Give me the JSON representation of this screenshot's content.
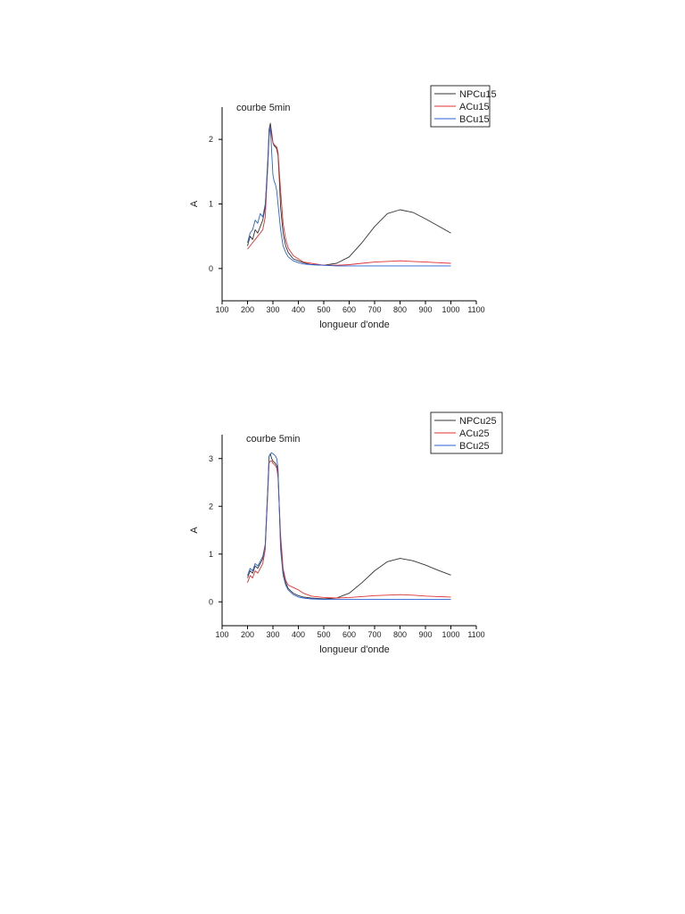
{
  "chart_data": [
    {
      "type": "line",
      "title": "courbe 5min",
      "xlabel": "longueur d'onde",
      "ylabel": "A",
      "xlim": [
        100,
        1100
      ],
      "ylim": [
        -0.5,
        2.5
      ],
      "xticks": [
        100,
        200,
        300,
        400,
        500,
        600,
        700,
        800,
        900,
        1000,
        1100
      ],
      "yticks": [
        0,
        1,
        2
      ],
      "grid": false,
      "legend": "top-right",
      "series": [
        {
          "name": "NPCu15",
          "color": "#333333",
          "x": [
            200,
            210,
            220,
            230,
            240,
            250,
            260,
            270,
            280,
            285,
            290,
            295,
            300,
            305,
            310,
            315,
            320,
            325,
            330,
            340,
            350,
            360,
            380,
            400,
            420,
            450,
            500,
            550,
            600,
            650,
            700,
            750,
            800,
            850,
            900,
            950,
            1000
          ],
          "y": [
            0.35,
            0.5,
            0.45,
            0.6,
            0.55,
            0.65,
            0.75,
            0.95,
            1.7,
            2.15,
            2.25,
            2.1,
            1.95,
            1.9,
            1.88,
            1.85,
            1.75,
            1.4,
            0.95,
            0.55,
            0.35,
            0.25,
            0.15,
            0.12,
            0.09,
            0.06,
            0.05,
            0.08,
            0.18,
            0.4,
            0.65,
            0.85,
            0.91,
            0.87,
            0.77,
            0.66,
            0.55
          ]
        },
        {
          "name": "ACu15",
          "color": "#e03030",
          "x": [
            200,
            210,
            220,
            230,
            240,
            250,
            260,
            270,
            280,
            285,
            290,
            295,
            300,
            305,
            310,
            315,
            320,
            330,
            340,
            350,
            360,
            380,
            400,
            420,
            450,
            500,
            550,
            600,
            650,
            700,
            750,
            800,
            850,
            900,
            950,
            1000
          ],
          "y": [
            0.3,
            0.35,
            0.4,
            0.45,
            0.5,
            0.55,
            0.6,
            0.8,
            1.6,
            2.1,
            2.2,
            2.05,
            1.95,
            1.92,
            1.9,
            1.88,
            1.8,
            1.2,
            0.7,
            0.45,
            0.32,
            0.2,
            0.15,
            0.1,
            0.08,
            0.05,
            0.05,
            0.06,
            0.08,
            0.1,
            0.11,
            0.12,
            0.11,
            0.1,
            0.09,
            0.08
          ]
        },
        {
          "name": "BCu15",
          "color": "#2a62d6",
          "x": [
            200,
            210,
            220,
            230,
            240,
            250,
            260,
            270,
            280,
            285,
            290,
            295,
            300,
            305,
            310,
            315,
            320,
            330,
            340,
            350,
            360,
            380,
            400,
            420,
            450,
            500,
            550,
            600,
            650,
            700,
            750,
            800,
            850,
            900,
            950,
            1000
          ],
          "y": [
            0.4,
            0.55,
            0.6,
            0.75,
            0.7,
            0.85,
            0.8,
            1.0,
            1.6,
            2.05,
            2.2,
            1.8,
            1.45,
            1.35,
            1.3,
            1.2,
            1.0,
            0.6,
            0.35,
            0.25,
            0.18,
            0.12,
            0.09,
            0.07,
            0.06,
            0.05,
            0.04,
            0.04,
            0.04,
            0.04,
            0.04,
            0.04,
            0.04,
            0.04,
            0.04,
            0.04
          ]
        }
      ]
    },
    {
      "type": "line",
      "title": "courbe 5min",
      "xlabel": "longueur d'onde",
      "ylabel": "A",
      "xlim": [
        100,
        1100
      ],
      "ylim": [
        -0.5,
        3.5
      ],
      "xticks": [
        100,
        200,
        300,
        400,
        500,
        600,
        700,
        800,
        900,
        1000,
        1100
      ],
      "yticks": [
        0,
        1,
        2,
        3
      ],
      "grid": false,
      "legend": "top-right",
      "series": [
        {
          "name": "NPCu25",
          "color": "#333333",
          "x": [
            200,
            210,
            220,
            230,
            240,
            250,
            260,
            270,
            280,
            285,
            290,
            295,
            300,
            305,
            310,
            315,
            320,
            325,
            330,
            340,
            350,
            360,
            380,
            400,
            420,
            450,
            500,
            550,
            600,
            650,
            700,
            750,
            800,
            850,
            900,
            950,
            1000
          ],
          "y": [
            0.5,
            0.65,
            0.6,
            0.75,
            0.7,
            0.8,
            0.9,
            1.2,
            2.4,
            3.05,
            3.1,
            3.0,
            2.95,
            2.92,
            2.9,
            2.85,
            2.7,
            2.0,
            1.2,
            0.65,
            0.4,
            0.28,
            0.18,
            0.13,
            0.1,
            0.08,
            0.06,
            0.08,
            0.18,
            0.4,
            0.65,
            0.84,
            0.91,
            0.86,
            0.77,
            0.66,
            0.56
          ]
        },
        {
          "name": "ACu25",
          "color": "#e03030",
          "x": [
            200,
            210,
            220,
            230,
            240,
            250,
            260,
            270,
            280,
            285,
            290,
            295,
            300,
            305,
            310,
            315,
            320,
            330,
            340,
            350,
            360,
            380,
            400,
            420,
            450,
            500,
            550,
            600,
            650,
            700,
            750,
            800,
            850,
            900,
            950,
            1000
          ],
          "y": [
            0.4,
            0.55,
            0.5,
            0.65,
            0.6,
            0.7,
            0.8,
            1.1,
            2.3,
            2.9,
            2.95,
            2.95,
            2.9,
            2.88,
            2.85,
            2.8,
            2.6,
            1.4,
            0.7,
            0.45,
            0.35,
            0.3,
            0.25,
            0.18,
            0.12,
            0.09,
            0.08,
            0.09,
            0.11,
            0.13,
            0.14,
            0.15,
            0.14,
            0.12,
            0.11,
            0.1
          ]
        },
        {
          "name": "BCu25",
          "color": "#2a62d6",
          "x": [
            200,
            210,
            220,
            230,
            240,
            250,
            260,
            270,
            280,
            285,
            290,
            295,
            300,
            305,
            310,
            315,
            320,
            330,
            340,
            350,
            360,
            380,
            400,
            420,
            450,
            500,
            550,
            600,
            650,
            700,
            750,
            800,
            850,
            900,
            950,
            1000
          ],
          "y": [
            0.55,
            0.7,
            0.65,
            0.8,
            0.75,
            0.85,
            0.95,
            1.2,
            2.4,
            3.05,
            3.1,
            3.12,
            3.1,
            3.08,
            3.05,
            3.0,
            2.8,
            1.1,
            0.55,
            0.35,
            0.25,
            0.15,
            0.1,
            0.08,
            0.06,
            0.05,
            0.05,
            0.05,
            0.05,
            0.05,
            0.05,
            0.05,
            0.05,
            0.05,
            0.05,
            0.05
          ]
        }
      ]
    }
  ]
}
